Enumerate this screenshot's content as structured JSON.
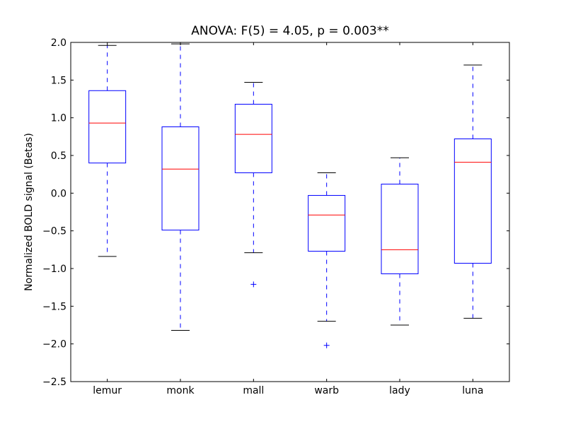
{
  "chart_data": {
    "type": "boxplot",
    "title": "ANOVA: F(5) = 4.05, p = 0.003**",
    "xlabel": "",
    "ylabel": "Normalized BOLD signal (Betas)",
    "ylim": [
      -2.5,
      2.0
    ],
    "yticks": [
      2.0,
      1.5,
      1.0,
      0.5,
      0.0,
      -0.5,
      -1.0,
      -1.5,
      -2.0,
      -2.5
    ],
    "ytick_labels": [
      "2.0",
      "1.5",
      "1.0",
      "0.5",
      "0.0",
      "−0.5",
      "−1.0",
      "−1.5",
      "−2.0",
      "−2.5"
    ],
    "categories": [
      "lemur",
      "monk",
      "mall",
      "warb",
      "lady",
      "luna"
    ],
    "boxes": [
      {
        "name": "lemur",
        "whisker_low": -0.84,
        "q1": 0.4,
        "median": 0.93,
        "q3": 1.36,
        "whisker_high": 1.96,
        "outliers": []
      },
      {
        "name": "monk",
        "whisker_low": -1.82,
        "q1": -0.49,
        "median": 0.32,
        "q3": 0.88,
        "whisker_high": 1.98,
        "outliers": []
      },
      {
        "name": "mall",
        "whisker_low": -0.79,
        "q1": 0.27,
        "median": 0.78,
        "q3": 1.18,
        "whisker_high": 1.47,
        "outliers": [
          -1.21
        ]
      },
      {
        "name": "warb",
        "whisker_low": -1.7,
        "q1": -0.77,
        "median": -0.29,
        "q3": -0.03,
        "whisker_high": 0.27,
        "outliers": [
          -2.02
        ]
      },
      {
        "name": "lady",
        "whisker_low": -1.75,
        "q1": -1.07,
        "median": -0.75,
        "q3": 0.12,
        "whisker_high": 0.47,
        "outliers": []
      },
      {
        "name": "luna",
        "whisker_low": -1.66,
        "q1": -0.93,
        "median": 0.41,
        "q3": 0.72,
        "whisker_high": 1.7,
        "outliers": []
      }
    ],
    "grid": false,
    "colors": {
      "box": "#0000ff",
      "median": "#ff0000",
      "cap": "#000000"
    }
  }
}
